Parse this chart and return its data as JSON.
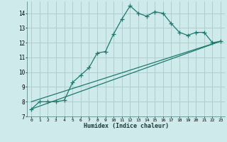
{
  "title": "",
  "xlabel": "Humidex (Indice chaleur)",
  "bg_color": "#ceeaea",
  "grid_color": "#b0cece",
  "line_color": "#1e7a6e",
  "xlim": [
    -0.5,
    23.5
  ],
  "ylim": [
    7,
    14.8
  ],
  "xticks": [
    0,
    1,
    2,
    3,
    4,
    5,
    6,
    7,
    8,
    9,
    10,
    11,
    12,
    13,
    14,
    15,
    16,
    17,
    18,
    19,
    20,
    21,
    22,
    23
  ],
  "yticks": [
    7,
    8,
    9,
    10,
    11,
    12,
    13,
    14
  ],
  "series1_x": [
    0,
    1,
    2,
    3,
    4,
    5,
    6,
    7,
    8,
    9,
    10,
    11,
    12,
    13,
    14,
    15,
    16,
    17,
    18,
    19,
    20,
    21,
    22,
    23
  ],
  "series1_y": [
    7.5,
    8.0,
    8.0,
    8.0,
    8.1,
    9.3,
    9.8,
    10.3,
    11.3,
    11.4,
    12.6,
    13.6,
    14.5,
    14.0,
    13.8,
    14.1,
    14.0,
    13.3,
    12.7,
    12.5,
    12.7,
    12.7,
    12.0,
    12.1
  ],
  "series2_x": [
    0,
    23
  ],
  "series2_y": [
    7.5,
    12.1
  ],
  "series3_x": [
    0,
    23
  ],
  "series3_y": [
    8.0,
    12.1
  ],
  "marker": "+",
  "markersize": 4,
  "linewidth": 0.9
}
